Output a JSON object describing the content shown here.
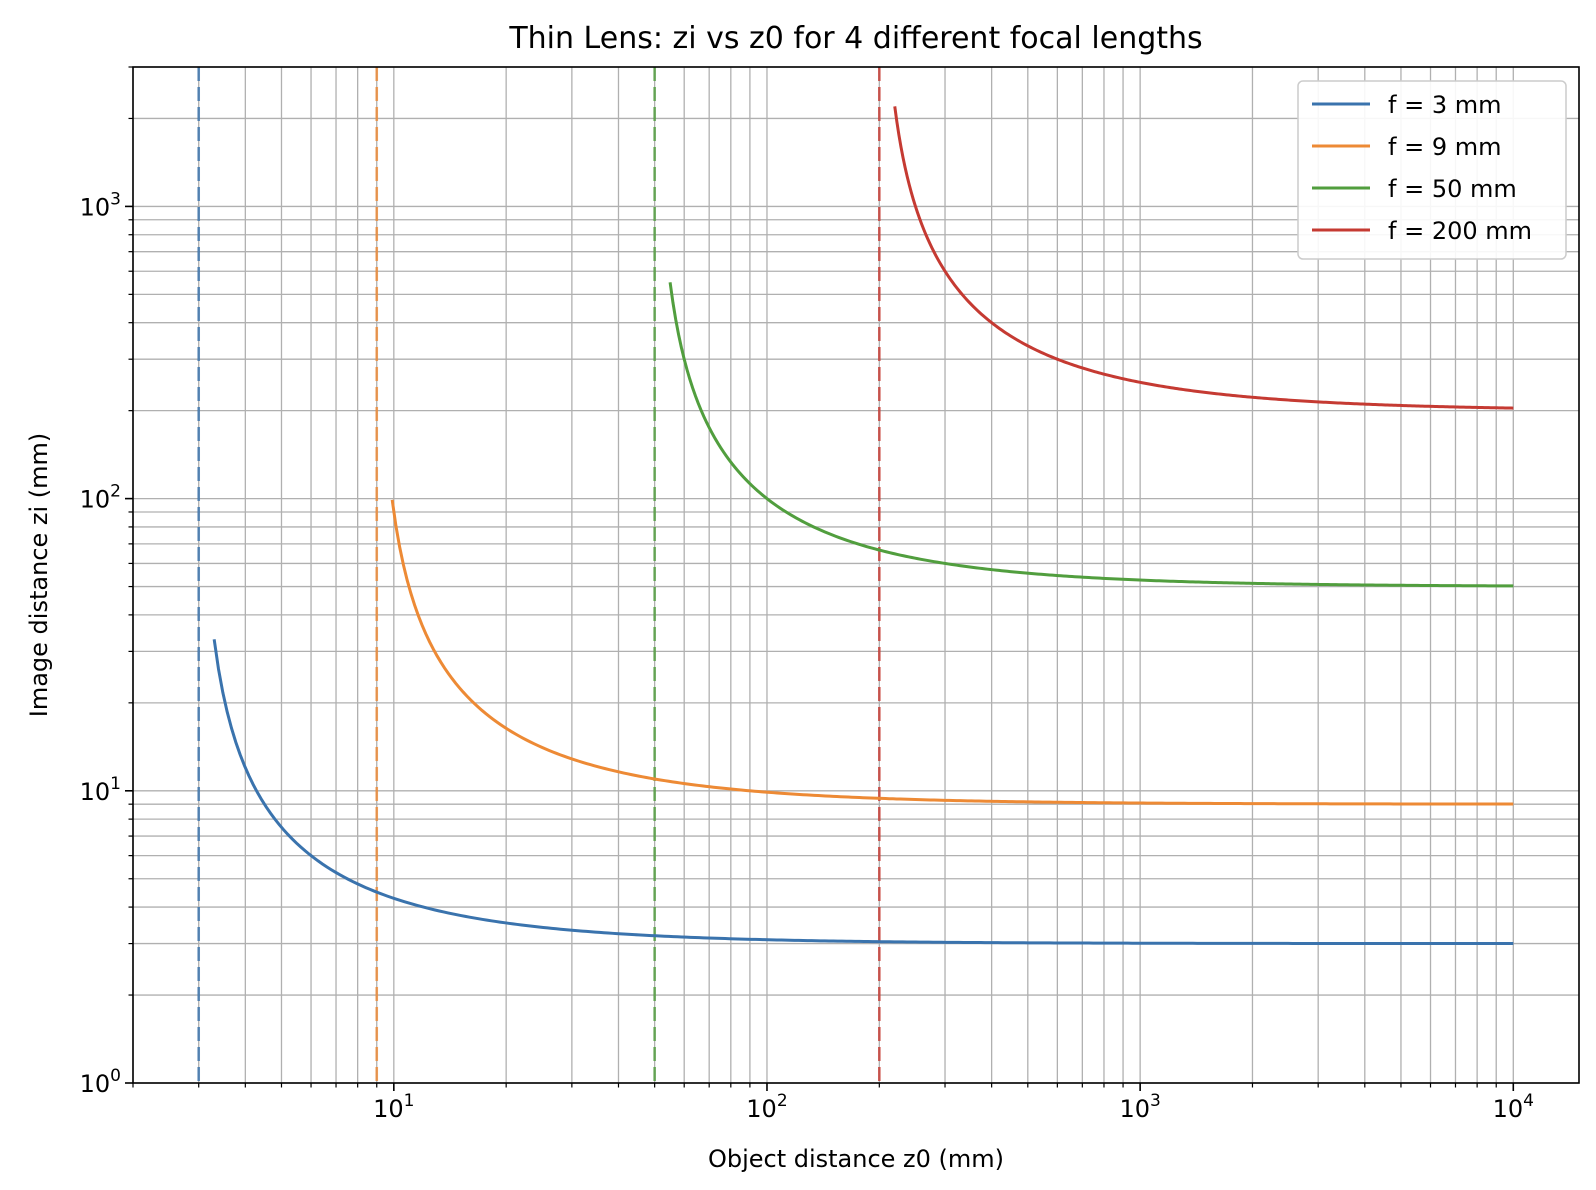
{
  "chart_data": {
    "type": "line",
    "title": "Thin Lens: zi vs z0 for 4 different focal lengths",
    "xlabel": "Object distance z0 (mm)",
    "ylabel": "Image distance zi (mm)",
    "xscale": "log",
    "yscale": "log",
    "xlim": [
      2,
      15000
    ],
    "ylim": [
      1,
      3000
    ],
    "grid": "major and minor",
    "legend_position": "top-right",
    "x_ticks": [
      {
        "base": "10",
        "exp": "1",
        "value": 10
      },
      {
        "base": "10",
        "exp": "2",
        "value": 100
      },
      {
        "base": "10",
        "exp": "3",
        "value": 1000
      },
      {
        "base": "10",
        "exp": "4",
        "value": 10000
      }
    ],
    "y_ticks": [
      {
        "base": "10",
        "exp": "0",
        "value": 1
      },
      {
        "base": "10",
        "exp": "1",
        "value": 10
      },
      {
        "base": "10",
        "exp": "2",
        "value": 100
      },
      {
        "base": "10",
        "exp": "3",
        "value": 1000
      }
    ],
    "series": [
      {
        "name": "f = 3 mm",
        "focal_length": 3,
        "color": "#3a73ad",
        "x_range": [
          3.3,
          10000
        ]
      },
      {
        "name": "f = 9 mm",
        "focal_length": 9,
        "color": "#ed8a35",
        "x_range": [
          9.9,
          10000
        ]
      },
      {
        "name": "f = 50 mm",
        "focal_length": 50,
        "color": "#519e3e",
        "x_range": [
          55,
          10000
        ]
      },
      {
        "name": "f = 200 mm",
        "focal_length": 200,
        "color": "#c53a32",
        "x_range": [
          220,
          10000
        ]
      }
    ],
    "focal_markers": [
      {
        "x": 3,
        "color": "#3a73ad",
        "style": "dashed"
      },
      {
        "x": 9,
        "color": "#ed8a35",
        "style": "dashed"
      },
      {
        "x": 50,
        "color": "#519e3e",
        "style": "dashed"
      },
      {
        "x": 200,
        "color": "#c53a32",
        "style": "dashed"
      }
    ]
  }
}
